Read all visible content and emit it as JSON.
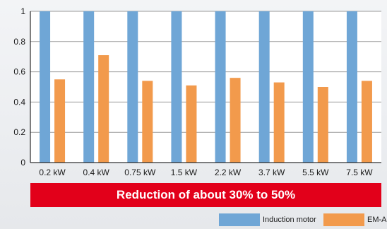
{
  "chart_data": {
    "type": "bar",
    "title": "",
    "xlabel": "",
    "ylabel": "",
    "categories": [
      "0.2 kW",
      "0.4 kW",
      "0.75 kW",
      "1.5 kW",
      "2.2 kW",
      "3.7 kW",
      "5.5 kW",
      "7.5 kW"
    ],
    "series": [
      {
        "name": "Induction motor",
        "color": "#6fa6d6",
        "values": [
          1,
          1,
          1,
          1,
          1,
          1,
          1,
          1
        ]
      },
      {
        "name": "EM-A",
        "color": "#f29a4c",
        "values": [
          0.55,
          0.71,
          0.54,
          0.51,
          0.56,
          0.53,
          0.5,
          0.54
        ]
      }
    ],
    "ylim": [
      0,
      1
    ],
    "yticks": [
      "0",
      "0.2",
      "0.4",
      "0.6",
      "0.8",
      "1"
    ],
    "grid": true,
    "legend_position": "bottom-right"
  },
  "banner": {
    "text": "Reduction of about 30% to 50%",
    "color": "#e2001a"
  }
}
